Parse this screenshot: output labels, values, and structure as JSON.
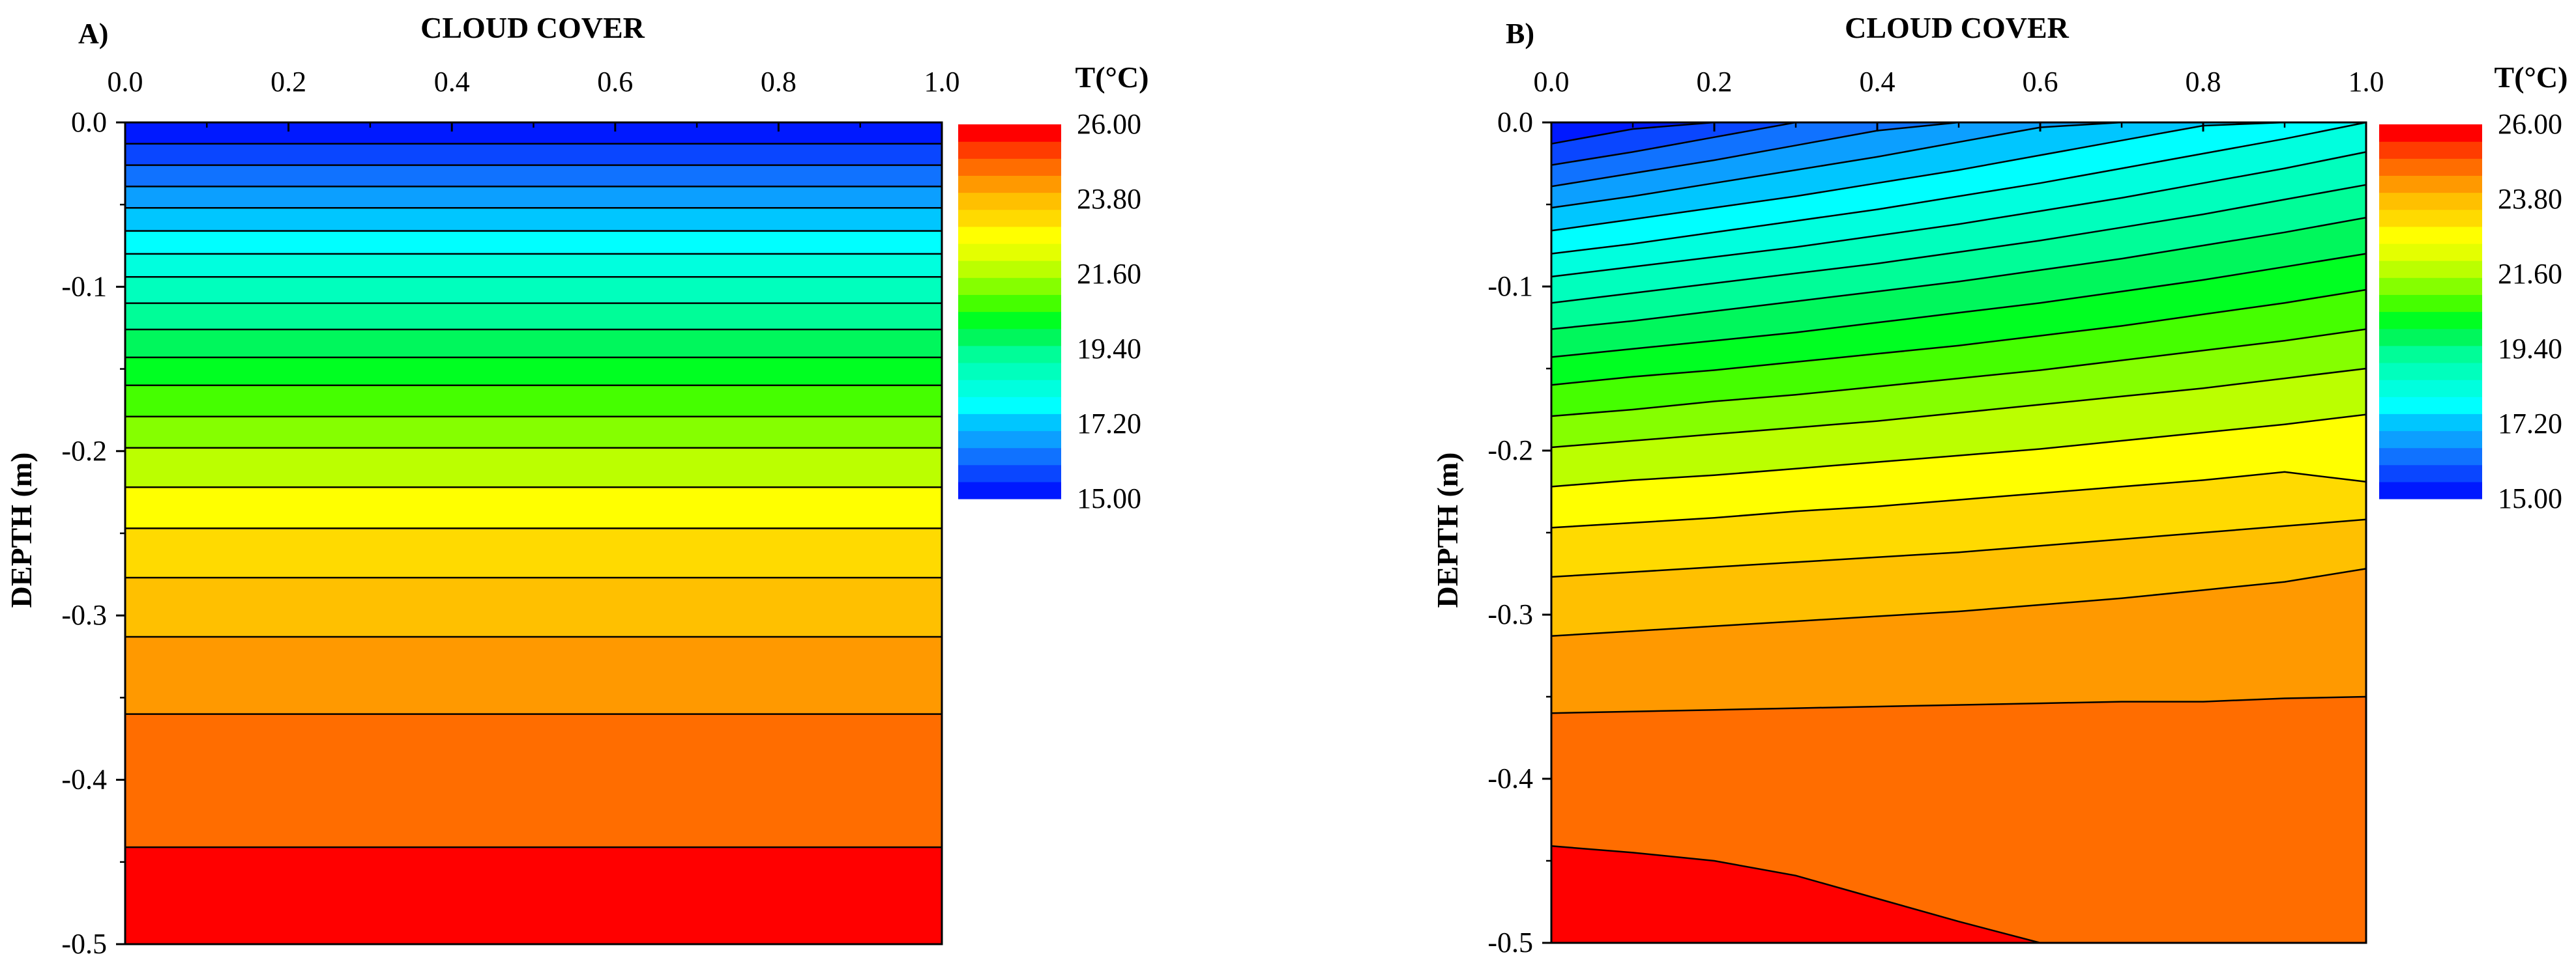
{
  "chart_data": {
    "type": "heatmap",
    "colorbar": {
      "title": "T(°C)",
      "min": 15.0,
      "max": 26.0,
      "step": 0.55,
      "tick_labels": [
        "26.00",
        "23.80",
        "21.60",
        "19.40",
        "17.20",
        "15.00"
      ],
      "colors": [
        "#0019ff",
        "#0a46ff",
        "#1072ff",
        "#0c9fff",
        "#00c6ff",
        "#00ffff",
        "#00ffde",
        "#00ffbd",
        "#00fd98",
        "#00f75c",
        "#00ff22",
        "#45ff00",
        "#85ff00",
        "#bbff00",
        "#e4ff00",
        "#ffff00",
        "#ffda00",
        "#ffc000",
        "#ff9900",
        "#ff6d00",
        "#ff3c00",
        "#ff0000"
      ]
    },
    "panels": [
      {
        "id": "A",
        "label": "A)",
        "title": "CLOUD COVER",
        "ylabel": "DEPTH (m)",
        "x_ticks": [
          "0.0",
          "0.2",
          "0.4",
          "0.6",
          "0.8",
          "1.0"
        ],
        "y_ticks": [
          "0.0",
          "-0.1",
          "-0.2",
          "-0.3",
          "-0.4",
          "-0.5"
        ],
        "xlim": [
          0,
          1
        ],
        "ylim": [
          -0.5,
          0
        ],
        "x": [
          0.0,
          1.0
        ],
        "contour_depths": [
          [
            -0.013,
            -0.013
          ],
          [
            -0.026,
            -0.026
          ],
          [
            -0.039,
            -0.039
          ],
          [
            -0.052,
            -0.052
          ],
          [
            -0.066,
            -0.066
          ],
          [
            -0.08,
            -0.08
          ],
          [
            -0.094,
            -0.094
          ],
          [
            -0.11,
            -0.11
          ],
          [
            -0.126,
            -0.126
          ],
          [
            -0.143,
            -0.143
          ],
          [
            -0.16,
            -0.16
          ],
          [
            -0.179,
            -0.179
          ],
          [
            -0.198,
            -0.198
          ],
          [
            -0.222,
            -0.222
          ],
          [
            -0.247,
            -0.247
          ],
          [
            -0.277,
            -0.277
          ],
          [
            -0.313,
            -0.313
          ],
          [
            -0.36,
            -0.36
          ],
          [
            -0.441,
            -0.441
          ]
        ],
        "band_colors": [
          "#0019ff",
          "#0a46ff",
          "#1072ff",
          "#0c9fff",
          "#00c6ff",
          "#00ffff",
          "#00ffde",
          "#00ffbd",
          "#00fd98",
          "#00f75c",
          "#00ff22",
          "#45ff00",
          "#85ff00",
          "#bbff00",
          "#ffff00",
          "#ffda00",
          "#ffc000",
          "#ff9900",
          "#ff6d00",
          "#ff3c00"
        ],
        "deep_color": "#ff0000"
      },
      {
        "id": "B",
        "label": "B)",
        "title": "CLOUD COVER",
        "ylabel": "DEPTH (m)",
        "x_ticks": [
          "0.0",
          "0.2",
          "0.4",
          "0.6",
          "0.8",
          "1.0"
        ],
        "y_ticks": [
          "0.0",
          "-0.1",
          "-0.2",
          "-0.3",
          "-0.4",
          "-0.5"
        ],
        "xlim": [
          0,
          1
        ],
        "ylim": [
          -0.5,
          0
        ],
        "x": [
          0.0,
          0.1,
          0.2,
          0.3,
          0.4,
          0.5,
          0.6,
          0.7,
          0.8,
          0.9,
          1.0
        ],
        "contour_depths": [
          [
            -0.013,
            -0.004,
            0.0,
            0.0,
            0.0,
            0.0,
            0.0,
            0.0,
            0.0,
            0.0,
            0.0
          ],
          [
            -0.026,
            -0.018,
            -0.009,
            0.0,
            0.0,
            0.0,
            0.0,
            0.0,
            0.0,
            0.0,
            0.0
          ],
          [
            -0.039,
            -0.031,
            -0.023,
            -0.014,
            -0.005,
            0.0,
            0.0,
            0.0,
            0.0,
            0.0,
            0.0
          ],
          [
            -0.052,
            -0.045,
            -0.037,
            -0.029,
            -0.021,
            -0.012,
            -0.003,
            0.0,
            0.0,
            0.0,
            0.0
          ],
          [
            -0.066,
            -0.059,
            -0.052,
            -0.045,
            -0.037,
            -0.029,
            -0.02,
            -0.011,
            -0.002,
            0.0,
            0.0
          ],
          [
            -0.08,
            -0.074,
            -0.067,
            -0.06,
            -0.053,
            -0.045,
            -0.037,
            -0.028,
            -0.019,
            -0.01,
            0.0
          ],
          [
            -0.094,
            -0.088,
            -0.082,
            -0.076,
            -0.069,
            -0.062,
            -0.054,
            -0.046,
            -0.037,
            -0.028,
            -0.018
          ],
          [
            -0.11,
            -0.104,
            -0.098,
            -0.092,
            -0.086,
            -0.079,
            -0.072,
            -0.064,
            -0.056,
            -0.047,
            -0.038
          ],
          [
            -0.126,
            -0.121,
            -0.115,
            -0.109,
            -0.103,
            -0.097,
            -0.09,
            -0.083,
            -0.075,
            -0.067,
            -0.058
          ],
          [
            -0.143,
            -0.138,
            -0.133,
            -0.128,
            -0.122,
            -0.116,
            -0.11,
            -0.103,
            -0.096,
            -0.088,
            -0.08
          ],
          [
            -0.16,
            -0.155,
            -0.151,
            -0.146,
            -0.141,
            -0.136,
            -0.13,
            -0.124,
            -0.117,
            -0.11,
            -0.102
          ],
          [
            -0.179,
            -0.175,
            -0.17,
            -0.166,
            -0.161,
            -0.156,
            -0.151,
            -0.145,
            -0.139,
            -0.133,
            -0.126
          ],
          [
            -0.198,
            -0.194,
            -0.19,
            -0.186,
            -0.182,
            -0.177,
            -0.172,
            -0.167,
            -0.162,
            -0.156,
            -0.15
          ],
          [
            -0.222,
            -0.218,
            -0.215,
            -0.211,
            -0.207,
            -0.203,
            -0.199,
            -0.194,
            -0.189,
            -0.184,
            -0.178
          ],
          [
            -0.247,
            -0.244,
            -0.241,
            -0.237,
            -0.234,
            -0.23,
            -0.226,
            -0.222,
            -0.218,
            -0.213,
            -0.219
          ],
          [
            -0.277,
            -0.274,
            -0.271,
            -0.268,
            -0.265,
            -0.262,
            -0.258,
            -0.254,
            -0.25,
            -0.246,
            -0.242
          ],
          [
            -0.313,
            -0.31,
            -0.307,
            -0.304,
            -0.301,
            -0.298,
            -0.294,
            -0.29,
            -0.285,
            -0.28,
            -0.272
          ],
          [
            -0.36,
            -0.359,
            -0.358,
            -0.357,
            -0.356,
            -0.355,
            -0.354,
            -0.353,
            -0.353,
            -0.351,
            -0.35
          ],
          [
            -0.441,
            -0.445,
            -0.45,
            -0.459,
            -0.473,
            -0.487,
            -0.5,
            -0.5,
            -0.5,
            -0.5,
            -0.5
          ]
        ],
        "band_colors": [
          "#0019ff",
          "#0a46ff",
          "#1072ff",
          "#0c9fff",
          "#00c6ff",
          "#00ffff",
          "#00ffde",
          "#00ffbd",
          "#00fd98",
          "#00f75c",
          "#00ff22",
          "#45ff00",
          "#85ff00",
          "#bbff00",
          "#ffff00",
          "#ffda00",
          "#ffc000",
          "#ff9900",
          "#ff6d00",
          "#ff3c00"
        ],
        "deep_color": "#ff0000"
      }
    ]
  }
}
